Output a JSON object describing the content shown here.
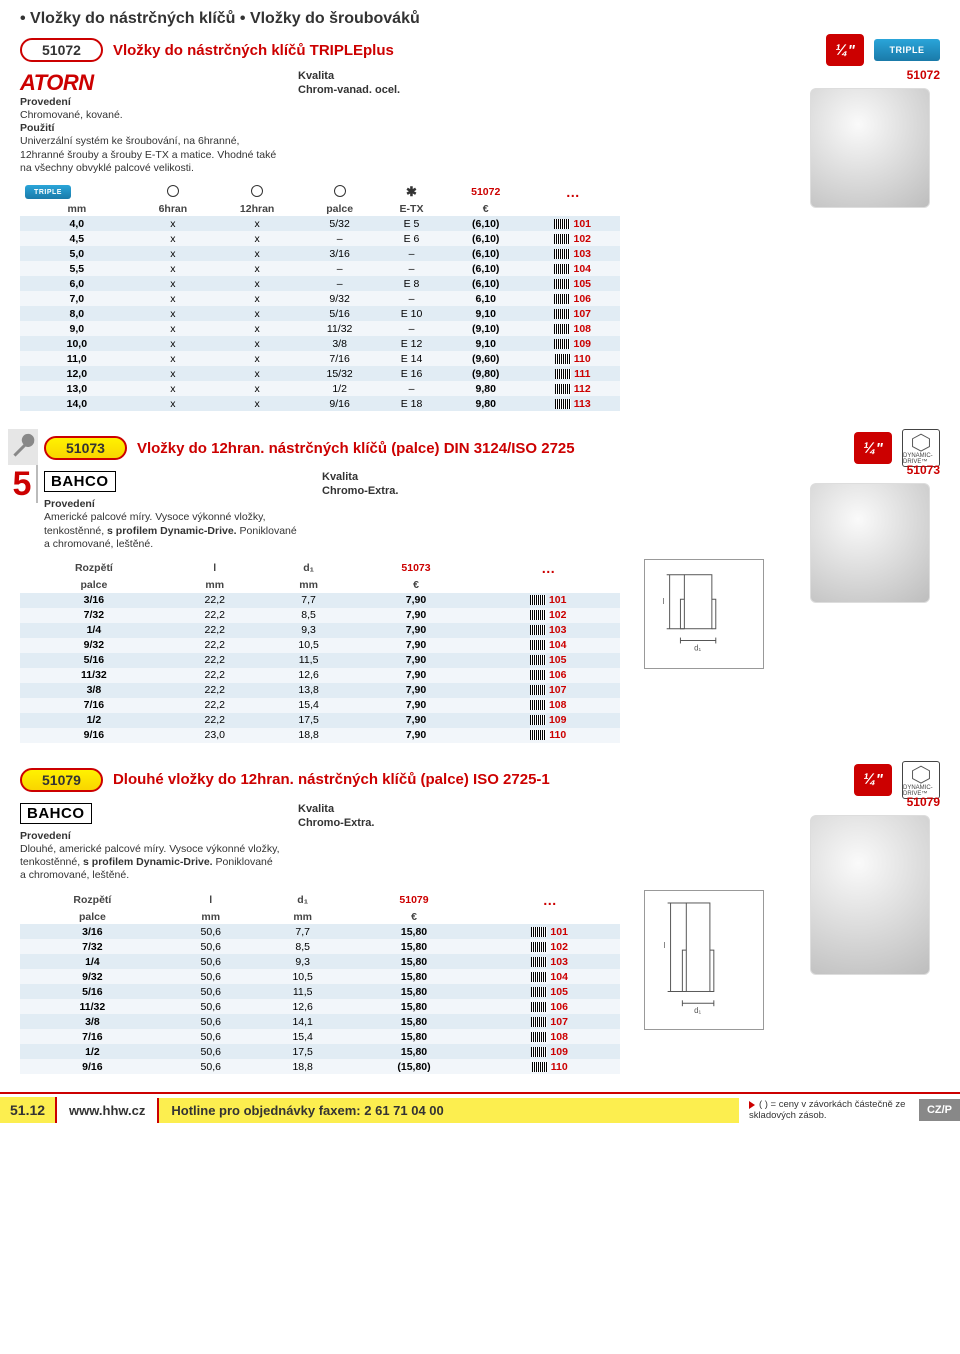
{
  "colors": {
    "accent": "#cc0000",
    "row_odd": "#e1ecf4",
    "row_even": "#f2f6fa",
    "yellow": "#fcee4f"
  },
  "page_bullet_title": "• Vložky do nástrčných klíčů • Vložky do šroubováků",
  "sec1": {
    "code": "51072",
    "title": "Vložky do nástrčných klíčů TRIPLEplus",
    "brand": "ATORN",
    "qtr": "¼\"",
    "triple": "TRIPLE",
    "kvalita_label": "Kvalita",
    "kvalita_txt": "Chrom-vanad. ocel.",
    "right_code": "51072",
    "desc_label": "Provedení",
    "desc_txt1": "Chromované, kované.",
    "desc_label2": "Použití",
    "desc_txt2": "Univerzální systém ke šroubování, na 6hranné, 12hranné šrouby a šrouby E-TX a matice. Vhodné také na všechny obvyklé palcové velikosti.",
    "headers": {
      "mm": "mm",
      "h6": "6hran",
      "h12": "12hran",
      "palce": "palce",
      "etx": "E-TX",
      "eur": "€",
      "dots": "…",
      "code": "51072"
    },
    "rows": [
      {
        "mm": "4,0",
        "h6": "x",
        "h12": "x",
        "palce": "5/32",
        "etx": "E 5",
        "price": "(6,10)",
        "code": "101"
      },
      {
        "mm": "4,5",
        "h6": "x",
        "h12": "x",
        "palce": "–",
        "etx": "E 6",
        "price": "(6,10)",
        "code": "102"
      },
      {
        "mm": "5,0",
        "h6": "x",
        "h12": "x",
        "palce": "3/16",
        "etx": "–",
        "price": "(6,10)",
        "code": "103"
      },
      {
        "mm": "5,5",
        "h6": "x",
        "h12": "x",
        "palce": "–",
        "etx": "–",
        "price": "(6,10)",
        "code": "104"
      },
      {
        "mm": "6,0",
        "h6": "x",
        "h12": "x",
        "palce": "–",
        "etx": "E 8",
        "price": "(6,10)",
        "code": "105"
      },
      {
        "mm": "7,0",
        "h6": "x",
        "h12": "x",
        "palce": "9/32",
        "etx": "–",
        "price": "6,10",
        "code": "106"
      },
      {
        "mm": "8,0",
        "h6": "x",
        "h12": "x",
        "palce": "5/16",
        "etx": "E 10",
        "price": "9,10",
        "code": "107"
      },
      {
        "mm": "9,0",
        "h6": "x",
        "h12": "x",
        "palce": "11/32",
        "etx": "–",
        "price": "(9,10)",
        "code": "108"
      },
      {
        "mm": "10,0",
        "h6": "x",
        "h12": "x",
        "palce": "3/8",
        "etx": "E 12",
        "price": "9,10",
        "code": "109"
      },
      {
        "mm": "11,0",
        "h6": "x",
        "h12": "x",
        "palce": "7/16",
        "etx": "E 14",
        "price": "(9,60)",
        "code": "110"
      },
      {
        "mm": "12,0",
        "h6": "x",
        "h12": "x",
        "palce": "15/32",
        "etx": "E 16",
        "price": "(9,80)",
        "code": "111"
      },
      {
        "mm": "13,0",
        "h6": "x",
        "h12": "x",
        "palce": "1/2",
        "etx": "–",
        "price": "9,80",
        "code": "112"
      },
      {
        "mm": "14,0",
        "h6": "x",
        "h12": "x",
        "palce": "9/16",
        "etx": "E 18",
        "price": "9,80",
        "code": "113"
      }
    ]
  },
  "sec2": {
    "code": "51073",
    "title": "Vložky do 12hran. nástrčných klíčů (palce) DIN 3124/ISO 2725",
    "brand": "BAHCO",
    "qtr": "¼\"",
    "dyn_label": "DYNAMIC-DRIVE™",
    "right_code": "51073",
    "kvalita_label": "Kvalita",
    "kvalita_txt": "Chromo-Extra.",
    "desc_label": "Provedení",
    "desc_line1": "Americké palcové míry.",
    "desc_line2": " Vysoce výkonné vložky, tenkostěnné, ",
    "desc_bold": "s profilem Dynamic-Drive.",
    "desc_line3": " Poniklované a chromované, leštěné.",
    "headers": {
      "rozp": "Rozpětí",
      "palce": "palce",
      "l": "l",
      "mm": "mm",
      "d1": "d₁",
      "eur": "€",
      "dots": "…",
      "code": "51073"
    },
    "rows": [
      {
        "palce": "3/16",
        "l": "22,2",
        "d1": "7,7",
        "price": "7,90",
        "code": "101"
      },
      {
        "palce": "7/32",
        "l": "22,2",
        "d1": "8,5",
        "price": "7,90",
        "code": "102"
      },
      {
        "palce": "1/4",
        "l": "22,2",
        "d1": "9,3",
        "price": "7,90",
        "code": "103"
      },
      {
        "palce": "9/32",
        "l": "22,2",
        "d1": "10,5",
        "price": "7,90",
        "code": "104"
      },
      {
        "palce": "5/16",
        "l": "22,2",
        "d1": "11,5",
        "price": "7,90",
        "code": "105"
      },
      {
        "palce": "11/32",
        "l": "22,2",
        "d1": "12,6",
        "price": "7,90",
        "code": "106"
      },
      {
        "palce": "3/8",
        "l": "22,2",
        "d1": "13,8",
        "price": "7,90",
        "code": "107"
      },
      {
        "palce": "7/16",
        "l": "22,2",
        "d1": "15,4",
        "price": "7,90",
        "code": "108"
      },
      {
        "palce": "1/2",
        "l": "22,2",
        "d1": "17,5",
        "price": "7,90",
        "code": "109"
      },
      {
        "palce": "9/16",
        "l": "23,0",
        "d1": "18,8",
        "price": "7,90",
        "code": "110"
      }
    ]
  },
  "sec3": {
    "code": "51079",
    "title": "Dlouhé vložky do 12hran. nástrčných klíčů (palce) ISO 2725-1",
    "brand": "BAHCO",
    "qtr": "¼\"",
    "dyn_label": "DYNAMIC-DRIVE™",
    "right_code": "51079",
    "kvalita_label": "Kvalita",
    "kvalita_txt": "Chromo-Extra.",
    "desc_label": "Provedení",
    "desc_line1": "Dlouhé, americké palcové míry.",
    "desc_line2": " Vysoce výkonné vložky, tenkostěnné, ",
    "desc_bold": "s profilem Dynamic-Drive.",
    "desc_line3": " Poniklované a chromované, leštěné.",
    "headers": {
      "rozp": "Rozpětí",
      "palce": "palce",
      "l": "l",
      "mm": "mm",
      "d1": "d₁",
      "eur": "€",
      "dots": "…",
      "code": "51079"
    },
    "rows": [
      {
        "palce": "3/16",
        "l": "50,6",
        "d1": "7,7",
        "price": "15,80",
        "code": "101"
      },
      {
        "palce": "7/32",
        "l": "50,6",
        "d1": "8,5",
        "price": "15,80",
        "code": "102"
      },
      {
        "palce": "1/4",
        "l": "50,6",
        "d1": "9,3",
        "price": "15,80",
        "code": "103"
      },
      {
        "palce": "9/32",
        "l": "50,6",
        "d1": "10,5",
        "price": "15,80",
        "code": "104"
      },
      {
        "palce": "5/16",
        "l": "50,6",
        "d1": "11,5",
        "price": "15,80",
        "code": "105"
      },
      {
        "palce": "11/32",
        "l": "50,6",
        "d1": "12,6",
        "price": "15,80",
        "code": "106"
      },
      {
        "palce": "3/8",
        "l": "50,6",
        "d1": "14,1",
        "price": "15,80",
        "code": "107"
      },
      {
        "palce": "7/16",
        "l": "50,6",
        "d1": "15,4",
        "price": "15,80",
        "code": "108"
      },
      {
        "palce": "1/2",
        "l": "50,6",
        "d1": "17,5",
        "price": "15,80",
        "code": "109"
      },
      {
        "palce": "9/16",
        "l": "50,6",
        "d1": "18,8",
        "price": "(15,80)",
        "code": "110"
      }
    ]
  },
  "footer": {
    "tab": "51.12",
    "url": "www.hhw.cz",
    "hotline": "Hotline pro objednávky faxem: 2 61 71 04 00",
    "note": "( ) = ceny v závorkách částečně ze skladových zásob.",
    "cz": "CZ/P"
  },
  "big5": "5"
}
